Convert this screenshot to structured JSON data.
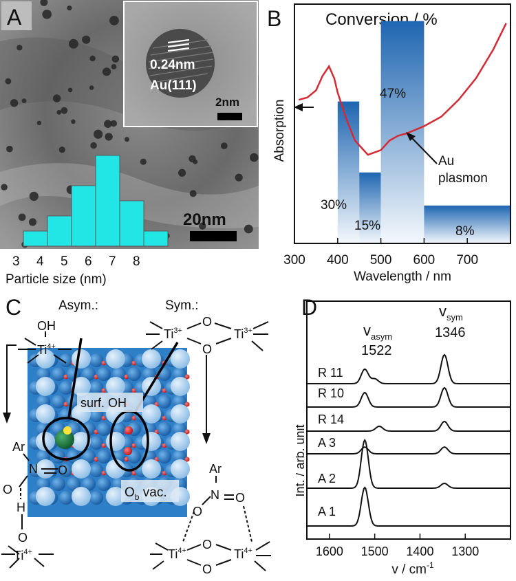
{
  "panels": {
    "A": {
      "label": "A",
      "inset_spacing": "0.24nm",
      "inset_plane": "Au(111)",
      "inset_scale": "2nm",
      "scale": "20nm",
      "xlabel": "Particle size (nm)"
    },
    "B": {
      "label": "B",
      "title": "Conversion / %",
      "ylabel": "Absorption",
      "xlabel": "Wavelength / nm",
      "annotation": [
        "Au",
        "plasmon"
      ]
    },
    "C": {
      "label": "C",
      "asym_label": "Asym.:",
      "sym_label": "Sym.:",
      "surf_oh": "surf. OH",
      "ob_vac": "O",
      "ob_vac_sub": "b",
      "ob_vac_tail": " vac."
    },
    "D": {
      "label": "D",
      "ylabel": "Int. / arb. unit",
      "xlabel": "v / cm",
      "xlabel_sup": "-1",
      "peak_asym": "v",
      "peak_asym_sub": "asym",
      "peak_asym_val": "1522",
      "peak_sym": "v",
      "peak_sym_sub": "sym",
      "peak_sym_val": "1346"
    }
  },
  "chart_data": [
    {
      "type": "bar",
      "panel": "A",
      "categories": [
        "3",
        "4",
        "5",
        "6",
        "7",
        "8"
      ],
      "values": [
        1,
        2,
        4,
        6,
        3,
        1
      ],
      "bar_color": "#22e6e6"
    },
    {
      "type": "bar",
      "panel": "B",
      "title": "Conversion / %",
      "xlabel": "Wavelength / nm",
      "ylabel": "Absorption",
      "xlim": [
        300,
        800
      ],
      "x_ticks": [
        "300",
        "400",
        "500",
        "600",
        "700"
      ],
      "bars": [
        {
          "from": 400,
          "to": 450,
          "value": 30,
          "label": "30%"
        },
        {
          "from": 450,
          "to": 500,
          "value": 15,
          "label": "15%"
        },
        {
          "from": 500,
          "to": 600,
          "value": 47,
          "label": "47%"
        },
        {
          "from": 600,
          "to": 800,
          "value": 8,
          "label": "8%"
        }
      ],
      "bar_color": "#2a6db5",
      "absorption_curve": {
        "color": "#d42a34",
        "x": [
          310,
          330,
          350,
          365,
          380,
          392,
          400,
          420,
          440,
          470,
          500,
          520,
          540,
          560,
          600,
          640,
          680,
          720,
          760,
          790
        ],
        "y": [
          0.6,
          0.61,
          0.64,
          0.7,
          0.74,
          0.69,
          0.63,
          0.52,
          0.43,
          0.37,
          0.39,
          0.43,
          0.45,
          0.46,
          0.49,
          0.53,
          0.6,
          0.69,
          0.81,
          0.92
        ]
      }
    },
    {
      "type": "line",
      "panel": "D",
      "xlabel": "v / cm-1",
      "ylabel": "Int. / arb. unit",
      "xlim": [
        1650,
        1200
      ],
      "x_ticks": [
        "1600",
        "1500",
        "1400",
        "1300"
      ],
      "series": [
        {
          "name": "R 11",
          "peaks": [
            {
              "x": 1522,
              "h": 0.3
            },
            {
              "x": 1500,
              "h": 0.1
            },
            {
              "x": 1346,
              "h": 0.6
            }
          ]
        },
        {
          "name": "R 10",
          "peaks": [
            {
              "x": 1522,
              "h": 0.3
            },
            {
              "x": 1346,
              "h": 0.4
            }
          ]
        },
        {
          "name": "R 14",
          "peaks": [
            {
              "x": 1490,
              "h": 0.1
            },
            {
              "x": 1346,
              "h": 0.2
            }
          ]
        },
        {
          "name": "A 3",
          "peaks": [
            {
              "x": 1522,
              "h": 0.14
            },
            {
              "x": 1346,
              "h": 0.14
            }
          ]
        },
        {
          "name": "A 2",
          "peaks": [
            {
              "x": 1522,
              "h": 1.0
            },
            {
              "x": 1346,
              "h": 0.1
            }
          ]
        },
        {
          "name": "A 1",
          "peaks": [
            {
              "x": 1522,
              "h": 0.8
            }
          ]
        }
      ]
    }
  ],
  "colors": {
    "tem_dark": "#3f3f3f",
    "tem_light": "#b5b5b5",
    "atom_blue": "#1f74c4",
    "atom_light": "#9dc9ef",
    "atom_red": "#e02020",
    "atom_green": "#1a7a3a",
    "atom_yellow": "#ffe23a"
  },
  "icons": [
    "scale-bar-icon",
    "arrow-left-icon"
  ]
}
